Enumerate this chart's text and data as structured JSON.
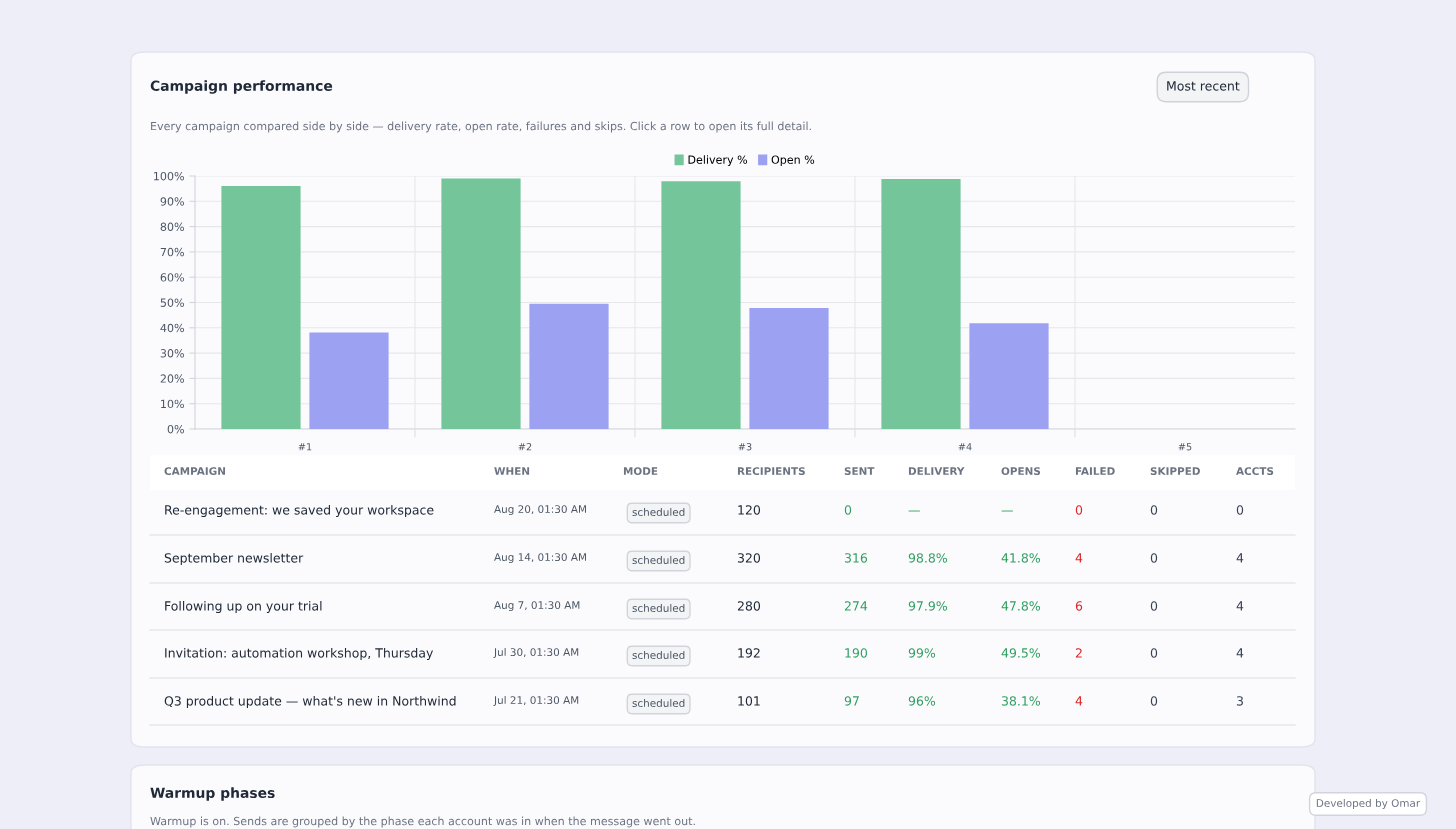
{
  "chart_data": [
    {
      "type": "bar",
      "title": "Campaign performance",
      "subtitle": "Every campaign compared side by side — delivery rate, open rate, failures and skips. Click a row to open its full detail.",
      "annotations": [
        "Most recent"
      ],
      "categories": [
        "#1",
        "#2",
        "#3",
        "#4",
        "#5"
      ],
      "series": [
        {
          "name": "Delivery %",
          "color": "#74c69a",
          "values": [
            96,
            99,
            97.9,
            98.8,
            null
          ]
        },
        {
          "name": "Open %",
          "color": "#9da1f2",
          "values": [
            38.1,
            49.5,
            47.8,
            41.8,
            null
          ]
        }
      ],
      "ylim": [
        0,
        100
      ],
      "yticks": [
        {
          "value": 0,
          "label": "0%"
        },
        {
          "value": 10,
          "label": "10%"
        },
        {
          "value": 20,
          "label": "20%"
        },
        {
          "value": 30,
          "label": "30%"
        },
        {
          "value": 40,
          "label": "40%"
        },
        {
          "value": 50,
          "label": "50%"
        },
        {
          "value": 60,
          "label": "60%"
        },
        {
          "value": 70,
          "label": "70%"
        },
        {
          "value": 80,
          "label": "80%"
        },
        {
          "value": 90,
          "label": "90%"
        },
        {
          "value": 100,
          "label": "100%"
        }
      ],
      "grid": true,
      "legend": "top"
    },
    {
      "type": "other",
      "categories": [
        "CAMPAIGN",
        "WHEN",
        "MODE",
        "RECIPIENTS",
        "SENT",
        "DELIVERY",
        "OPENS",
        "FAILED",
        "SKIPPED",
        "ACCTS"
      ],
      "colors": [
        "#1f2937",
        "#4b5563",
        "#4b5563",
        "#1f2937",
        "#2f9e5f",
        "#2f9e5f",
        "#2f9e5f",
        "#dc2626",
        "#374151",
        "#374151"
      ],
      "cell_labels": [
        [
          "Re-engagement: we saved your workspace",
          "Aug 20, 01:30 AM",
          "scheduled",
          "120",
          "0",
          "—",
          "—",
          "0",
          "0",
          "0"
        ],
        [
          "September newsletter",
          "Aug 14, 01:30 AM",
          "scheduled",
          "320",
          "316",
          "98.8%",
          "41.8%",
          "4",
          "0",
          "4"
        ],
        [
          "Following up on your trial",
          "Aug 7, 01:30 AM",
          "scheduled",
          "280",
          "274",
          "97.9%",
          "47.8%",
          "6",
          "0",
          "4"
        ],
        [
          "Invitation: automation workshop, Thursday",
          "Jul 30, 01:30 AM",
          "scheduled",
          "192",
          "190",
          "99%",
          "49.5%",
          "2",
          "0",
          "4"
        ],
        [
          "Q3 product update — what's new in Northwind",
          "Jul 21, 01:30 AM",
          "scheduled",
          "101",
          "97",
          "96%",
          "38.1%",
          "4",
          "0",
          "3"
        ]
      ]
    },
    {
      "type": "other",
      "title": "Warmup phases",
      "subtitle": "Warmup is on. Sends are grouped by the phase each account was in when the message went out.",
      "annotations": [
        "Developed by Omar"
      ]
    }
  ]
}
